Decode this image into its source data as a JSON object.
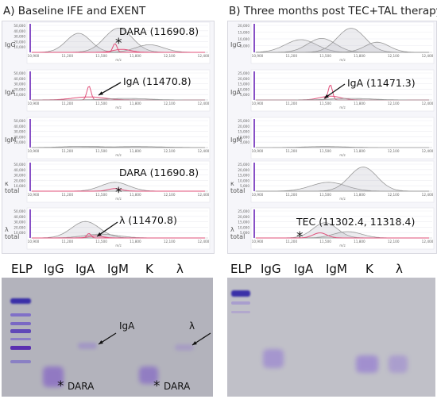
{
  "panels": [
    {
      "id": "A",
      "title": "A) Baseline IFE and EXENT",
      "rows": [
        {
          "label": "IgG",
          "yticks": [
            "50,000",
            "40,000",
            "30,000",
            "20,000",
            "10,000"
          ],
          "annotation": "DARA (11690.8)",
          "star": "*"
        },
        {
          "label": "IgA",
          "yticks": [
            "50,000",
            "40,000",
            "30,000",
            "20,000",
            "10,000"
          ],
          "annotation": "IgA (11470.8)"
        },
        {
          "label": "IgM",
          "yticks": [
            "50,000",
            "40,000",
            "30,000",
            "20,000",
            "10,000"
          ]
        },
        {
          "label": "κ total",
          "yticks": [
            "50,000",
            "40,000",
            "30,000",
            "20,000",
            "10,000"
          ],
          "annotation": "DARA (11690.8)",
          "star": "*"
        },
        {
          "label": "λ total",
          "yticks": [
            "50,000",
            "40,000",
            "30,000",
            "20,000",
            "10,000"
          ],
          "annotation": "λ (11470.8)"
        }
      ],
      "xticks": [
        "10,900",
        "11,200",
        "11,500",
        "11,800",
        "12,100",
        "12,400"
      ],
      "xunit": "m/z",
      "gel": {
        "lanes": [
          "ELP",
          "IgG",
          "IgA",
          "IgM",
          "K",
          "λ"
        ],
        "labels": [
          "IgA",
          "λ",
          "DARA",
          "DARA"
        ],
        "star": "*"
      }
    },
    {
      "id": "B",
      "title": "B) Three months post TEC+TAL therapy",
      "rows": [
        {
          "label": "IgG",
          "yticks": [
            "20,000",
            "15,000",
            "10,000",
            "5,000"
          ]
        },
        {
          "label": "IgA",
          "yticks": [
            "25,000",
            "20,000",
            "15,000",
            "10,000",
            "5,000"
          ],
          "annotation": "IgA (11471.3)"
        },
        {
          "label": "IgM",
          "yticks": [
            "25,000",
            "20,000",
            "15,000",
            "10,000",
            "5,000"
          ]
        },
        {
          "label": "κ total",
          "yticks": [
            "25,000",
            "20,000",
            "15,000",
            "10,000",
            "5,000"
          ]
        },
        {
          "label": "λ total",
          "yticks": [
            "25,000",
            "20,000",
            "15,000",
            "10,000",
            "5,000"
          ],
          "annotation": "TEC (11302.4, 11318.4)",
          "star": "*"
        }
      ],
      "xticks": [
        "10,900",
        "11,200",
        "11,500",
        "11,800",
        "12,100",
        "12,400"
      ],
      "xunit": "m/z",
      "gel": {
        "lanes": [
          "ELP",
          "IgG",
          "IgA",
          "IgM",
          "K",
          "λ"
        ]
      }
    }
  ],
  "colors": {
    "trace": "#999999",
    "highlight": "#e0507a",
    "axis": "#7a3cc0",
    "gel": "#b5b5be",
    "band": "#7c4ec0"
  }
}
